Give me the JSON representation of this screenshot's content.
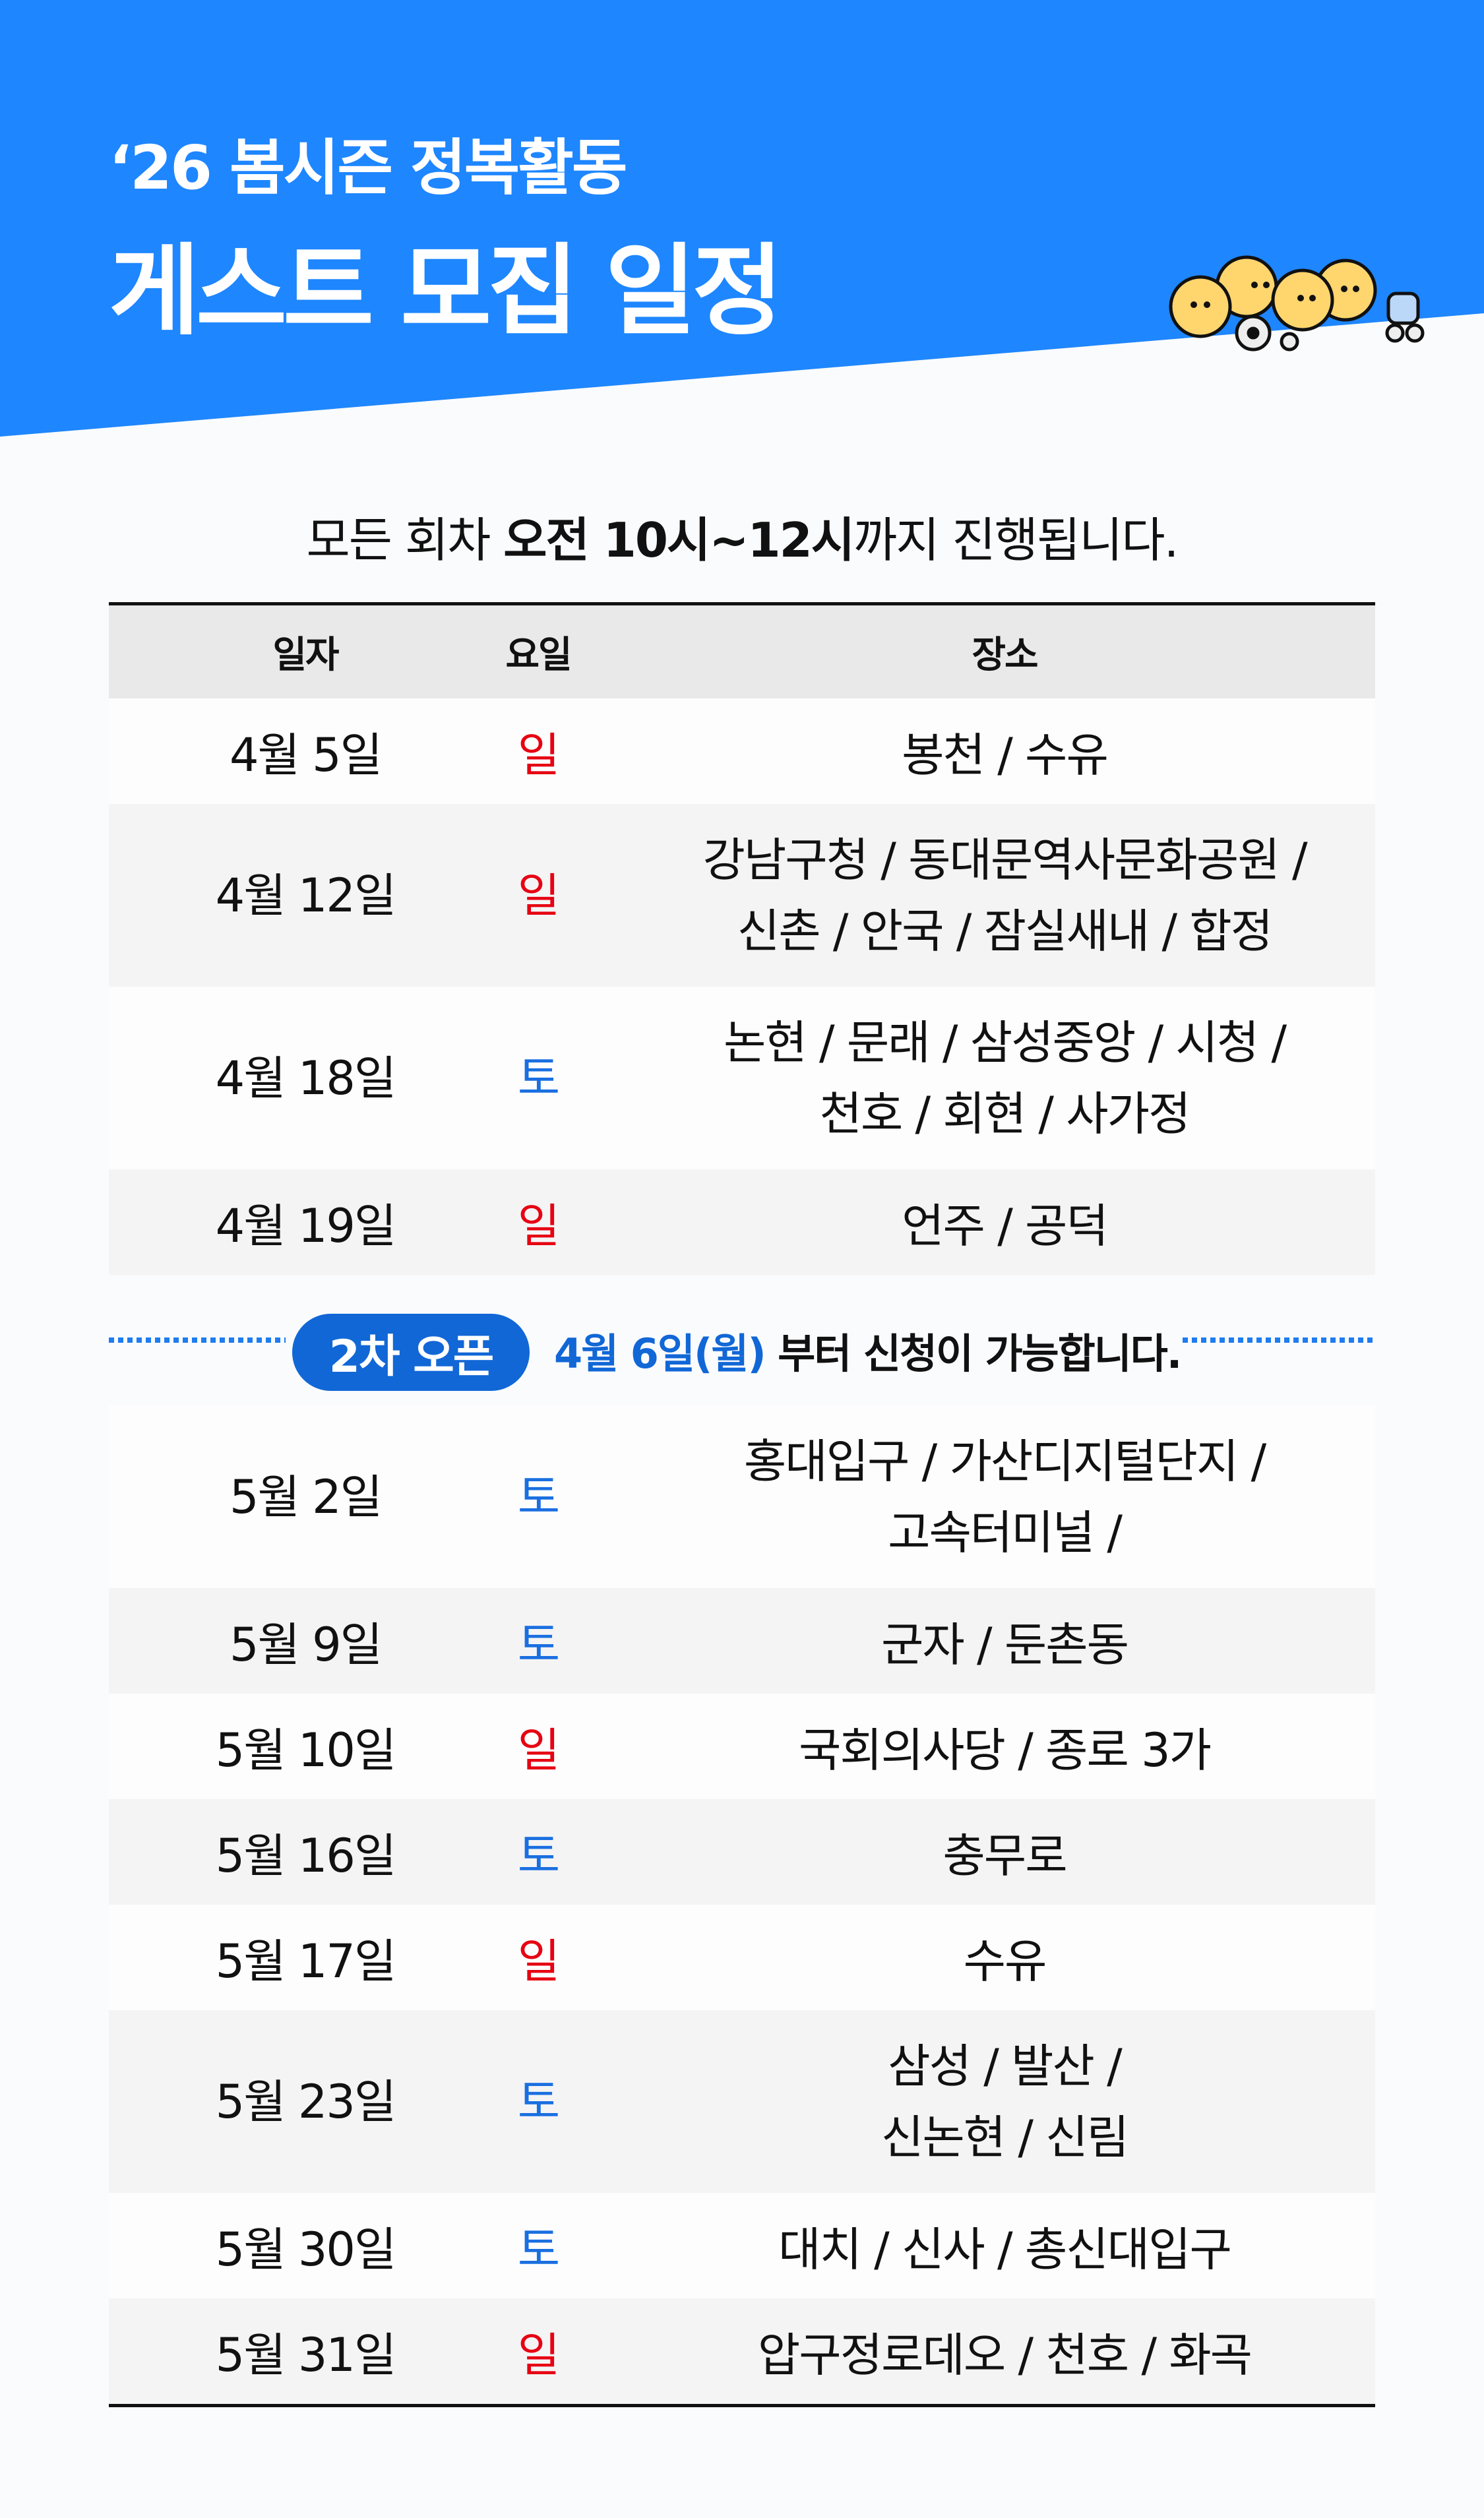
{
  "header": {
    "line1": "‘26 봄시즌 정복활동",
    "line2": "게스트 모집 일정",
    "bg_color": "#1e86ff"
  },
  "intro": {
    "pre": "모든 회차 ",
    "bold": "오전 10시~12시",
    "post": "까지 진행됩니다."
  },
  "table": {
    "columns": [
      "일자",
      "요일",
      "장소"
    ],
    "first": [
      {
        "date": "4월 5일",
        "day": "일",
        "lines": [
          "봉천 / 수유"
        ]
      },
      {
        "date": "4월 12일",
        "day": "일",
        "lines": [
          "강남구청 / 동대문역사문화공원 /",
          "신촌 / 안국 / 잠실새내 / 합정"
        ]
      },
      {
        "date": "4월 18일",
        "day": "토",
        "lines": [
          "논현 / 문래 / 삼성중앙 / 시청 /",
          "천호 / 회현 / 사가정"
        ]
      },
      {
        "date": "4월 19일",
        "day": "일",
        "lines": [
          "언주 / 공덕"
        ]
      }
    ],
    "banner": {
      "badge": "2차 오픈",
      "highlight": "4월 6일(월)",
      "rest": " 부터 신청이 가능합니다."
    },
    "second": [
      {
        "date": "5월 2일",
        "day": "토",
        "lines": [
          "홍대입구 / 가산디지털단지 /",
          "고속터미널 /"
        ]
      },
      {
        "date": "5월 9일",
        "day": "토",
        "lines": [
          "군자 / 둔촌동"
        ]
      },
      {
        "date": "5월 10일",
        "day": "일",
        "lines": [
          "국회의사당 / 종로 3가"
        ]
      },
      {
        "date": "5월 16일",
        "day": "토",
        "lines": [
          "충무로"
        ]
      },
      {
        "date": "5월 17일",
        "day": "일",
        "lines": [
          "수유"
        ]
      },
      {
        "date": "5월 23일",
        "day": "토",
        "lines": [
          "삼성 / 발산 /",
          "신논현 / 신림"
        ]
      },
      {
        "date": "5월 30일",
        "day": "토",
        "lines": [
          "대치 / 신사 / 총신대입구"
        ]
      },
      {
        "date": "5월 31일",
        "day": "일",
        "lines": [
          "압구정로데오 / 천호 / 화곡"
        ]
      }
    ]
  },
  "colors": {
    "sunday": "#e60012",
    "saturday": "#1a6fe0",
    "badge": "#1167d6"
  },
  "illustration": "characters-pushing-wheelchair-and-stroller"
}
